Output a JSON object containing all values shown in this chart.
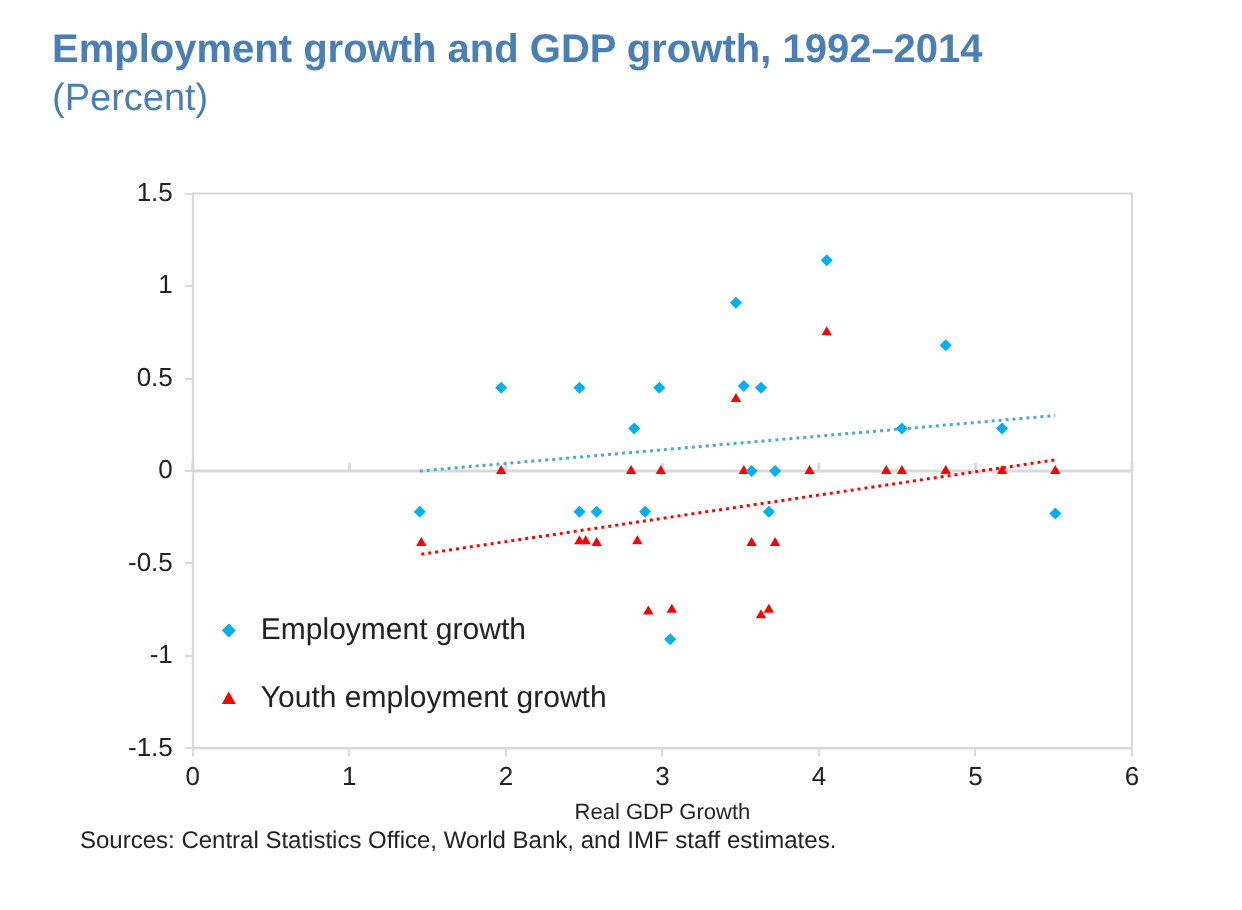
{
  "chart_data": {
    "type": "scatter",
    "title": "Employment growth and GDP growth, 1992–2014",
    "subtitle": "(Percent)",
    "xlabel": "Real GDP Growth",
    "xlim": [
      0,
      6
    ],
    "xticks": [
      0,
      1,
      2,
      3,
      4,
      5,
      6
    ],
    "ylim": [
      -1.5,
      1.5
    ],
    "yticks": [
      -1.5,
      -1,
      -0.5,
      0,
      0.5,
      1,
      1.5
    ],
    "grid": false,
    "legend": "bottom left",
    "ref_lines": [
      {
        "axis": "y",
        "value": 0,
        "color": "#d9d9d9"
      }
    ],
    "series": [
      {
        "name": "Employment growth",
        "color": "#00b0f0",
        "marker": "diamond",
        "x": [
          1.45,
          1.97,
          2.47,
          2.47,
          2.58,
          2.82,
          2.89,
          2.98,
          3.05,
          3.47,
          3.52,
          3.57,
          3.63,
          3.68,
          3.72,
          4.05,
          4.53,
          4.81,
          5.17,
          5.51
        ],
        "values": [
          -0.22,
          0.45,
          0.45,
          -0.22,
          -0.22,
          0.23,
          -0.22,
          0.45,
          -0.91,
          0.91,
          0.46,
          0,
          0.45,
          -0.22,
          0,
          1.14,
          0.23,
          0.68,
          0.23,
          -0.23
        ]
      },
      {
        "name": "Youth employment growth",
        "color": "#ff0000",
        "marker": "triangle",
        "x": [
          1.46,
          1.97,
          2.47,
          2.51,
          2.58,
          2.8,
          2.84,
          2.91,
          2.99,
          3.06,
          3.47,
          3.52,
          3.57,
          3.63,
          3.68,
          3.72,
          3.94,
          4.05,
          4.43,
          4.53,
          4.81,
          5.17,
          5.51
        ],
        "values": [
          -0.39,
          0,
          -0.38,
          -0.38,
          -0.39,
          0,
          -0.38,
          -0.76,
          0,
          -0.75,
          0.39,
          0,
          -0.39,
          -0.78,
          -0.75,
          -0.39,
          0,
          0.75,
          0,
          0,
          0,
          0,
          0
        ]
      },
      {
        "type": "line",
        "color": "#4aa8d8",
        "line_style": "dotted",
        "marker": "none",
        "x": [
          1.45,
          5.51
        ],
        "values": [
          0,
          0.3
        ]
      },
      {
        "type": "line",
        "color": "#ff0000",
        "line_style": "dotted",
        "marker": "none",
        "x": [
          1.46,
          5.51
        ],
        "values": [
          -0.45,
          0.06
        ]
      }
    ],
    "annotations": [
      "Sources: Central Statistics Office, World Bank, and IMF staff estimates."
    ]
  }
}
